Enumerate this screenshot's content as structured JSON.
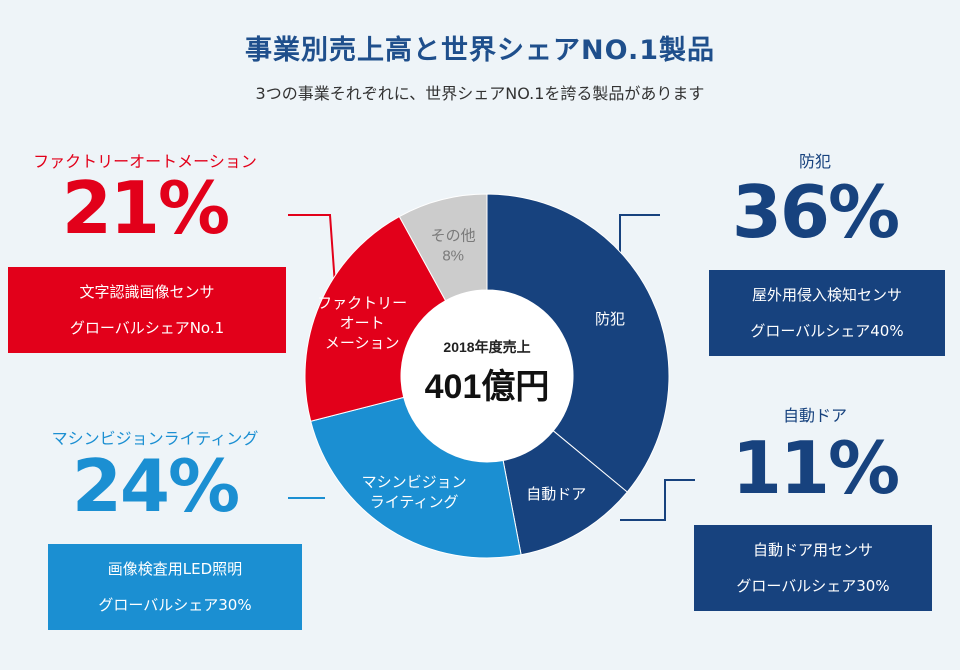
{
  "header": {
    "title": "事業別売上高と世界シェアNO.1製品",
    "subtitle": "3つの事業それぞれに、世界シェアNO.1を誇る製品があります"
  },
  "center": {
    "label": "2018年度売上",
    "value": "401億円"
  },
  "chart_data": {
    "type": "pie",
    "title": "事業別売上高と世界シェアNO.1製品",
    "total_label": "2018年度売上",
    "total_value": "401億円",
    "slices": [
      {
        "name": "防犯",
        "chart_label": [
          "防犯"
        ],
        "value": 36,
        "color": "#17427e",
        "label_color": "#ffffff"
      },
      {
        "name": "自動ドア",
        "chart_label": [
          "自動ドア"
        ],
        "value": 11,
        "color": "#17427e",
        "label_color": "#ffffff"
      },
      {
        "name": "マシンビジョンライティング",
        "chart_label": [
          "マシンビジョン",
          "ライティング"
        ],
        "value": 24,
        "color": "#1b8fd2",
        "label_color": "#ffffff"
      },
      {
        "name": "ファクトリーオートメーション",
        "chart_label": [
          "ファクトリー",
          "オート",
          "メーション"
        ],
        "value": 21,
        "color": "#e2001a",
        "label_color": "#ffffff"
      },
      {
        "name": "その他",
        "chart_label": [
          "その他",
          "8%"
        ],
        "value": 8,
        "color": "#cccccc",
        "label_color": "#7a7a7a"
      }
    ]
  },
  "segments": {
    "fa": {
      "name": "ファクトリーオートメーション",
      "pct": "21%",
      "line1": "文字認識画像センサ",
      "line2": "グローバルシェアNo.1",
      "color": "#e2001a"
    },
    "mv": {
      "name": "マシンビジョンライティング",
      "pct": "24%",
      "line1": "画像検査用LED照明",
      "line2": "グローバルシェア30%",
      "color": "#1b8fd2"
    },
    "security": {
      "name": "防犯",
      "pct": "36%",
      "line1": "屋外用侵入検知センサ",
      "line2": "グローバルシェア40%",
      "color": "#17427e"
    },
    "door": {
      "name": "自動ドア",
      "pct": "11%",
      "line1": "自動ドア用センサ",
      "line2": "グローバルシェア30%",
      "color": "#17427e"
    }
  }
}
